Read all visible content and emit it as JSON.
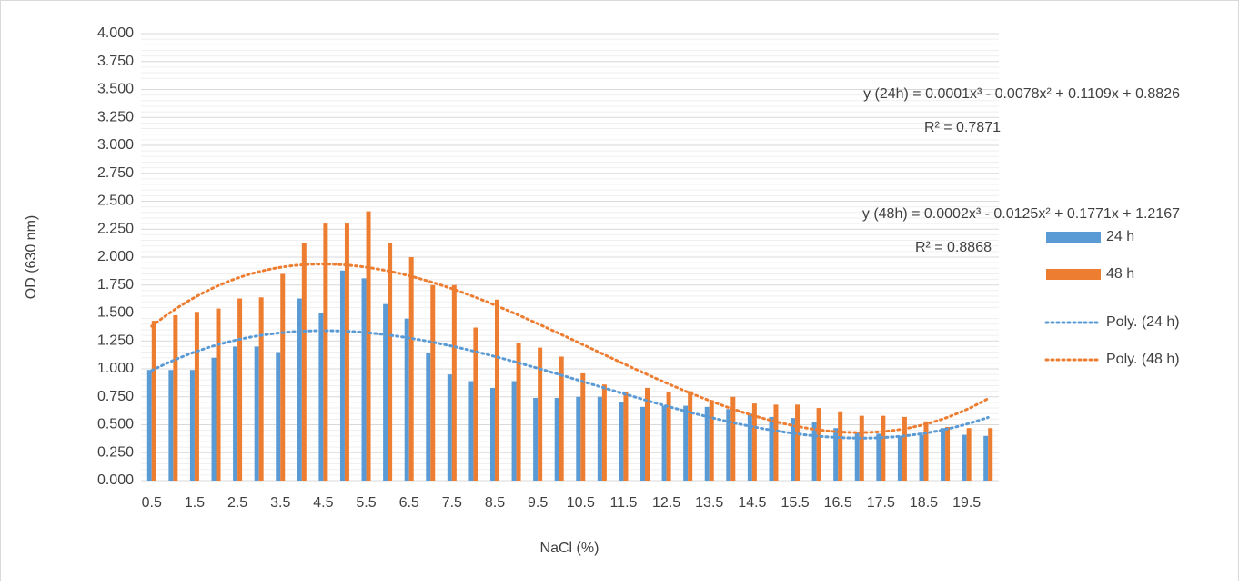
{
  "chart_data": {
    "type": "bar",
    "x_label": "NaCl (%)",
    "y_label": "OD (630 nm)",
    "categories": [
      "0.5",
      null,
      "1.5",
      null,
      "2.5",
      null,
      "3.5",
      null,
      "4.5",
      null,
      "5.5",
      null,
      "6.5",
      null,
      "7.5",
      null,
      "8.5",
      null,
      "9.5",
      null,
      "10.5",
      null,
      "11.5",
      null,
      "12.5",
      null,
      "13.5",
      null,
      "14.5",
      null,
      "15.5",
      null,
      "16.5",
      null,
      "17.5",
      null,
      "18.5",
      null,
      "19.5",
      null
    ],
    "series": [
      {
        "name": "24 h",
        "color": "#5b9bd5",
        "values": [
          0.99,
          0.99,
          0.99,
          1.1,
          1.2,
          1.2,
          1.15,
          1.63,
          1.5,
          1.88,
          1.81,
          1.58,
          1.45,
          1.14,
          0.95,
          0.89,
          0.83,
          0.89,
          0.74,
          0.74,
          0.75,
          0.75,
          0.7,
          0.66,
          0.67,
          0.67,
          0.66,
          0.64,
          0.6,
          0.57,
          0.56,
          0.52,
          0.47,
          0.43,
          0.42,
          0.4,
          0.41,
          0.47,
          0.41,
          0.4
        ]
      },
      {
        "name": "48 h",
        "color": "#ed7d31",
        "values": [
          1.43,
          1.48,
          1.51,
          1.54,
          1.63,
          1.64,
          1.85,
          2.13,
          2.3,
          2.3,
          2.41,
          2.13,
          2.0,
          1.75,
          1.75,
          1.37,
          1.62,
          1.23,
          1.19,
          1.11,
          0.96,
          0.86,
          0.79,
          0.83,
          0.79,
          0.8,
          0.72,
          0.75,
          0.69,
          0.68,
          0.68,
          0.65,
          0.62,
          0.58,
          0.58,
          0.57,
          0.53,
          0.48,
          0.47,
          0.47
        ]
      }
    ],
    "trendlines": [
      {
        "name": "Poly. (24 h)",
        "series": 0,
        "order": 3,
        "color": "#5b9bd5",
        "equation": "y (24h) = 0.0001x³ - 0.0078x² + 0.1109x + 0.8826",
        "r_squared": "R² = 0.7871"
      },
      {
        "name": "Poly. (48 h)",
        "series": 1,
        "order": 3,
        "color": "#ed7d31",
        "equation": "y (48h) = 0.0002x³ - 0.0125x² + 0.1771x + 1.2167",
        "r_squared": "R² = 0.8868"
      }
    ],
    "ylim": [
      0,
      4
    ],
    "yticks": [
      {
        "value": 0,
        "label": "0.000"
      },
      {
        "value": 0.25,
        "label": "0.250"
      },
      {
        "value": 0.5,
        "label": "0.500"
      },
      {
        "value": 0.75,
        "label": "0.750"
      },
      {
        "value": 1,
        "label": "1.000"
      },
      {
        "value": 1.25,
        "label": "1.250"
      },
      {
        "value": 1.5,
        "label": "1.500"
      },
      {
        "value": 1.75,
        "label": "1.750"
      },
      {
        "value": 2,
        "label": "2.000"
      },
      {
        "value": 2.25,
        "label": "2.250"
      },
      {
        "value": 2.5,
        "label": "2.500"
      },
      {
        "value": 2.75,
        "label": "2.750"
      },
      {
        "value": 3,
        "label": "3.000"
      },
      {
        "value": 3.25,
        "label": "3.250"
      },
      {
        "value": 3.5,
        "label": "3.500"
      },
      {
        "value": 3.75,
        "label": "3.750"
      },
      {
        "value": 4,
        "label": "4.000"
      }
    ],
    "grid": true,
    "minor_grid": 5,
    "legend": "right"
  }
}
